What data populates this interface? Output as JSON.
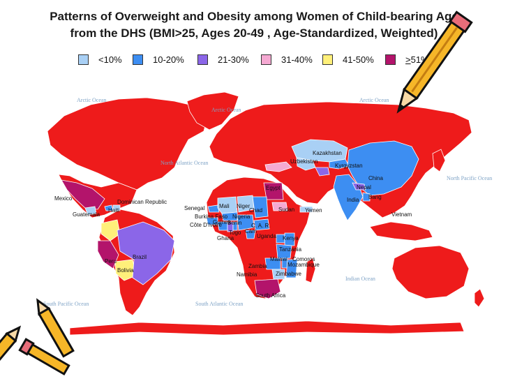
{
  "title": {
    "line1": "Patterns of Overweight and Obesity among Women of Child-bearing Age",
    "line2": "from the DHS (BMI>25, Ages 20-49 , Age-Standardized, Weighted)"
  },
  "legend": [
    {
      "label": "<10%",
      "color": "#a9d0f5"
    },
    {
      "label": "10-20%",
      "color": "#3d8ef2"
    },
    {
      "label": "21-30%",
      "color": "#8b66e8"
    },
    {
      "label": "31-40%",
      "color": "#f5a9d2"
    },
    {
      "label": "41-50%",
      "color": "#fff07a"
    },
    {
      "label_prefix": ">",
      "label": "51%",
      "color": "#b3146b"
    }
  ],
  "map_color": "#ee1b1b",
  "oceans": {
    "arctic_left": "Arctic Ocean",
    "arctic_center": "Arctic Ocean",
    "arctic_right": "Arctic Ocean",
    "north_atlantic": "North Atlantic Ocean",
    "north_pacific": "North Pacific Ocean",
    "south_pacific": "South Pacific Ocean",
    "south_atlantic": "South Atlantic Ocean",
    "indian": "Indian Ocean"
  },
  "countries": {
    "kazakhstan": "Kazakhstan",
    "uzbekistan": "Uzbekistan",
    "kyrgyzstan": "Kyrgyzstan",
    "china": "China",
    "nepal": "Nepal",
    "india": "India",
    "bangladesh": "Bang",
    "vietnam": "Vietnam",
    "egypt": "Egypt",
    "mexico": "Mexico",
    "guatemala": "Guatemala",
    "haiti": "Haiti",
    "dominican_republic": "Dominican Republic",
    "senegal": "Senegal",
    "mali": "Mali",
    "niger": "Niger",
    "chad": "Chad",
    "sudan": "Sudan",
    "yemen": "Yemen",
    "burkina_faso": "Burkina Faso",
    "nigeria": "Nigeria",
    "guinea": "Guinea",
    "benin": "Benin",
    "cote_divoire": "Côte D'Ivoire",
    "car": "C. A. R.",
    "togo": "Togo",
    "cameroon": "Cam",
    "ghana": "Ghana",
    "uganda": "Uganda",
    "kenya": "Kenya",
    "tanzania": "Tanzania",
    "malawi": "Malawi",
    "comoros": "Comoros",
    "mozambique": "Mozambique",
    "zambia": "Zambia",
    "namibia": "Namibia",
    "zimbabwe": "Zimbabwe",
    "south_africa": "South Africa",
    "brazil": "Brazil",
    "peru": "Peru",
    "bolivia": "Bolivia"
  }
}
